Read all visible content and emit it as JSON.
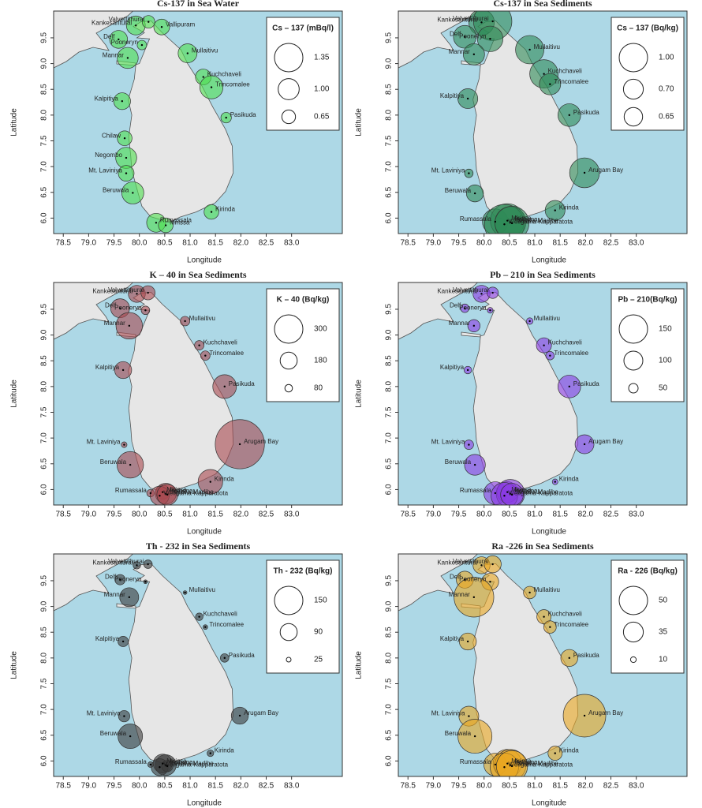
{
  "chart_data": [
    {
      "type": "bubble",
      "title": "Cs-137 in Sea Water",
      "xlabel": "Longitude",
      "ylabel": "Latitude",
      "color": "#4ee04e",
      "labels": [
        "Kankesanturai",
        "Valvettithurai",
        "Vallipuram",
        "Delf",
        "Pooneryn",
        "Mannar",
        "Mullaitivu",
        "Kuchchaveli",
        "Trincomalee",
        "Pasikuda",
        "Kalpitiya",
        "Chilaw",
        "Negombo",
        "Mt. Laviniya",
        "Beruwala",
        "Rumassala",
        "Mirissa",
        "Kirinda"
      ],
      "x": [
        79.93,
        80.18,
        80.44,
        79.59,
        80.05,
        79.77,
        80.95,
        81.26,
        81.42,
        81.71,
        79.66,
        79.71,
        79.74,
        79.74,
        79.87,
        80.33,
        80.52,
        81.42
      ],
      "y": [
        9.74,
        9.81,
        9.71,
        9.47,
        9.36,
        9.11,
        9.2,
        8.74,
        8.54,
        7.95,
        8.27,
        7.55,
        7.17,
        6.87,
        6.49,
        5.91,
        5.86,
        6.12
      ],
      "values": [
        0.9,
        0.6,
        0.75,
        0.85,
        0.45,
        1.0,
        0.9,
        0.75,
        1.1,
        0.5,
        0.8,
        0.7,
        1.0,
        0.75,
        1.05,
        0.9,
        0.7,
        0.7
      ],
      "size_legend": {
        "title": "Cs – 137 (mBq/l)",
        "values": [
          1.35,
          {
            "value": 1,
            "label": "1.00"
          },
          0.65
        ]
      },
      "xlim": [
        78.31,
        84.0
      ],
      "ylim": [
        5.7,
        10.02
      ],
      "xticks": [
        78.5,
        {
          "value": 79,
          "label": "79.0"
        },
        79.5,
        {
          "value": 80,
          "label": "80.0"
        },
        80.5,
        {
          "value": 81,
          "label": "81.0"
        },
        81.5,
        {
          "value": 82,
          "label": "82.0"
        },
        82.5,
        {
          "value": 83,
          "label": "83.0"
        }
      ],
      "yticks": [
        {
          "value": 6,
          "label": "6.0"
        },
        6.5,
        {
          "value": 7,
          "label": "7.0"
        },
        7.5,
        {
          "value": 8,
          "label": "8.0"
        },
        8.5,
        {
          "value": 9,
          "label": "9.0"
        },
        9.5
      ]
    },
    {
      "type": "bubble",
      "title": "Cs-137 in Sea Sediments",
      "xlabel": "Longitude",
      "ylabel": "Latitude",
      "color": "#2e8b57",
      "labels": [
        "Kankesanturai",
        "Valvettithurai",
        "Delf",
        "Pooneryn",
        "Mannar",
        "Mullaitivu",
        "Kuchchaveli",
        "Trincomalee",
        "Kalpitiya",
        "Pasikuda",
        "Mt. Laviniya",
        "Arugam Bay",
        "Beruwala",
        "Rumassala",
        "Mirissa",
        "Polhena",
        "Weligama-Kapparatota",
        "Matara-Madihe",
        "Kirinda"
      ],
      "x": [
        79.95,
        80.17,
        79.62,
        80.12,
        79.8,
        80.9,
        81.18,
        81.3,
        79.68,
        81.68,
        79.7,
        81.98,
        79.82,
        80.22,
        80.46,
        80.52,
        80.4,
        80.55,
        81.4
      ],
      "y": [
        9.8,
        9.82,
        9.52,
        9.48,
        9.18,
        9.27,
        8.8,
        8.6,
        8.32,
        8.0,
        6.87,
        6.88,
        6.48,
        5.93,
        5.95,
        5.92,
        5.88,
        5.9,
        6.15
      ],
      "values": [
        0.9,
        1.35,
        0.8,
        0.9,
        0.75,
        1.0,
        1.0,
        0.75,
        0.7,
        0.8,
        0.3,
        1.05,
        0.6,
        0.9,
        1.2,
        1.1,
        1.4,
        1.2,
        0.7
      ],
      "size_legend": {
        "title": "Cs – 137 (Bq/kg)",
        "values": [
          {
            "value": 1,
            "label": "1.00"
          },
          {
            "value": 0.7,
            "label": "0.70"
          },
          0.65
        ]
      },
      "xlim": [
        78.31,
        84.0
      ],
      "ylim": [
        5.7,
        10.02
      ],
      "xticks": [
        78.5,
        {
          "value": 79,
          "label": "79.0"
        },
        79.5,
        {
          "value": 80,
          "label": "80.0"
        },
        80.5,
        {
          "value": 81,
          "label": "81.0"
        },
        81.5,
        {
          "value": 82,
          "label": "82.0"
        },
        82.5,
        {
          "value": 83,
          "label": "83.0"
        }
      ],
      "yticks": [
        {
          "value": 6,
          "label": "6.0"
        },
        6.5,
        {
          "value": 7,
          "label": "7.0"
        },
        7.5,
        {
          "value": 8,
          "label": "8.0"
        },
        8.5,
        {
          "value": 9,
          "label": "9.0"
        },
        9.5
      ]
    },
    {
      "type": "bubble",
      "title": "K – 40 in Sea Sediments",
      "xlabel": "Longitude",
      "ylabel": "Latitude",
      "color": "#a8474f",
      "labels": [
        "Kankesanturai",
        "Valvettithurai",
        "Delf",
        "Pooneryn",
        "Mannar",
        "Mullaitivu",
        "Kuchchaveli",
        "Trincomalee",
        "Kalpitiya",
        "Pasikuda",
        "Mt. Laviniya",
        "Arugam Bay",
        "Beruwala",
        "Rumassala",
        "Mirissa",
        "Polhena",
        "Weligama-Kapparatota",
        "Matara-Madihe",
        "Kirinda"
      ],
      "x": [
        79.95,
        80.17,
        79.62,
        80.12,
        79.8,
        80.9,
        81.18,
        81.3,
        79.68,
        81.68,
        79.7,
        81.98,
        79.82,
        80.22,
        80.46,
        80.52,
        80.4,
        80.55,
        81.4
      ],
      "y": [
        9.8,
        9.82,
        9.52,
        9.48,
        9.18,
        9.27,
        8.8,
        8.6,
        8.32,
        8.0,
        6.87,
        6.88,
        6.48,
        5.93,
        5.95,
        5.92,
        5.88,
        5.9,
        6.15
      ],
      "values": [
        180,
        150,
        200,
        90,
        280,
        100,
        100,
        100,
        180,
        250,
        60,
        520,
        280,
        80,
        150,
        220,
        200,
        220,
        260
      ],
      "size_legend": {
        "title": "K – 40 (Bq/kg)",
        "values": [
          300,
          180,
          80
        ]
      },
      "xlim": [
        78.31,
        84.0
      ],
      "ylim": [
        5.7,
        10.02
      ],
      "xticks": [
        78.5,
        {
          "value": 79,
          "label": "79.0"
        },
        79.5,
        {
          "value": 80,
          "label": "80.0"
        },
        80.5,
        {
          "value": 81,
          "label": "81.0"
        },
        81.5,
        {
          "value": 82,
          "label": "82.0"
        },
        82.5,
        {
          "value": 83,
          "label": "83.0"
        }
      ],
      "yticks": [
        {
          "value": 6,
          "label": "6.0"
        },
        6.5,
        {
          "value": 7,
          "label": "7.0"
        },
        7.5,
        {
          "value": 8,
          "label": "8.0"
        },
        8.5,
        {
          "value": 9,
          "label": "9.0"
        },
        9.5
      ]
    },
    {
      "type": "bubble",
      "title": "Pb – 210 in Sea Sediments",
      "xlabel": "Longitude",
      "ylabel": "Latitude",
      "color": "#8a3be2",
      "labels": [
        "Kankesanturai",
        "Valvettithurai",
        "Delf",
        "Pooneryn",
        "Mannar",
        "Mullaitivu",
        "Kuchchaveli",
        "Trincomalee",
        "Kalpitiya",
        "Pasikuda",
        "Mt. Laviniya",
        "Arugam Bay",
        "Beruwala",
        "Rumassala",
        "Mirissa",
        "Polhena",
        "Weligama-Kapparatota",
        "Matara-Madihe",
        "Kirinda"
      ],
      "x": [
        79.95,
        80.17,
        79.62,
        80.12,
        79.8,
        80.9,
        81.18,
        81.3,
        79.68,
        81.68,
        79.7,
        81.98,
        79.82,
        80.22,
        80.46,
        80.52,
        80.4,
        80.55,
        81.4
      ],
      "y": [
        9.8,
        9.82,
        9.52,
        9.48,
        9.18,
        9.27,
        8.8,
        8.6,
        8.32,
        8.0,
        6.87,
        6.88,
        6.48,
        5.93,
        5.95,
        5.92,
        5.88,
        5.9,
        6.15
      ],
      "values": [
        90,
        60,
        45,
        30,
        65,
        35,
        80,
        45,
        40,
        120,
        50,
        100,
        110,
        120,
        110,
        150,
        140,
        120,
        30
      ],
      "size_legend": {
        "title": "Pb – 210(Bq/kg)",
        "values": [
          150,
          100,
          50
        ]
      },
      "xlim": [
        78.31,
        84.0
      ],
      "ylim": [
        5.7,
        10.02
      ],
      "xticks": [
        78.5,
        {
          "value": 79,
          "label": "79.0"
        },
        79.5,
        {
          "value": 80,
          "label": "80.0"
        },
        80.5,
        {
          "value": 81,
          "label": "81.0"
        },
        81.5,
        {
          "value": 82,
          "label": "82.0"
        },
        82.5,
        {
          "value": 83,
          "label": "83.0"
        }
      ],
      "yticks": [
        {
          "value": 6,
          "label": "6.0"
        },
        6.5,
        {
          "value": 7,
          "label": "7.0"
        },
        7.5,
        {
          "value": 8,
          "label": "8.0"
        },
        8.5,
        {
          "value": 9,
          "label": "9.0"
        },
        9.5
      ]
    },
    {
      "type": "bubble",
      "title": "Th - 232 in Sea Sediments",
      "xlabel": "Longitude",
      "ylabel": "Latitude",
      "color": "#3a3a3a",
      "labels": [
        "Kankesanturai",
        "Valvettithurai",
        "Delf",
        "Pooneryn",
        "Mannar",
        "Mullaitivu",
        "Kuchchaveli",
        "Trincomalee",
        "Kalpitiya",
        "Pasikuda",
        "Mt. Laviniya",
        "Arugam Bay",
        "Beruwala",
        "Rumassala",
        "Mirissa",
        "Polhena",
        "Weligama-Kapparatota",
        "Matara-Madihe",
        "Kirinda"
      ],
      "x": [
        79.95,
        80.17,
        79.62,
        80.12,
        79.8,
        80.9,
        81.18,
        81.3,
        79.68,
        81.68,
        79.7,
        81.98,
        79.82,
        80.22,
        80.46,
        80.52,
        80.4,
        80.55,
        81.4
      ],
      "y": [
        9.8,
        9.82,
        9.52,
        9.48,
        9.18,
        9.27,
        8.8,
        8.6,
        8.32,
        8.0,
        6.87,
        6.88,
        6.48,
        5.93,
        5.95,
        5.92,
        5.88,
        5.9,
        6.15
      ],
      "values": [
        40,
        45,
        55,
        20,
        100,
        20,
        40,
        25,
        55,
        45,
        60,
        90,
        130,
        30,
        100,
        110,
        90,
        60,
        35
      ],
      "size_legend": {
        "title": "Th - 232 (Bq/kg)",
        "values": [
          150,
          90,
          25
        ]
      },
      "xlim": [
        78.31,
        84.0
      ],
      "ylim": [
        5.7,
        10.02
      ],
      "xticks": [
        78.5,
        {
          "value": 79,
          "label": "79.0"
        },
        79.5,
        {
          "value": 80,
          "label": "80.0"
        },
        80.5,
        {
          "value": 81,
          "label": "81.0"
        },
        81.5,
        {
          "value": 82,
          "label": "82.0"
        },
        82.5,
        {
          "value": 83,
          "label": "83.0"
        }
      ],
      "yticks": [
        {
          "value": 6,
          "label": "6.0"
        },
        6.5,
        {
          "value": 7,
          "label": "7.0"
        },
        7.5,
        {
          "value": 8,
          "label": "8.0"
        },
        8.5,
        {
          "value": 9,
          "label": "9.0"
        },
        9.5
      ]
    },
    {
      "type": "bubble",
      "title": "Ra -226 in Sea Sediments",
      "xlabel": "Longitude",
      "ylabel": "Latitude",
      "color": "#eaa620",
      "labels": [
        "Kankesanturai",
        "Valvettithurai",
        "Delf",
        "Pooneryn",
        "Mannar",
        "Mullaitivu",
        "Kuchchaveli",
        "Trincomalee",
        "Kalpitiya",
        "Pasikuda",
        "Mt. Laviniya",
        "Arugam Bay",
        "Beruwala",
        "Rumassala",
        "Mirissa",
        "Polhena",
        "Weligama-Kapparatota",
        "Matara-Madihe",
        "Kirinda"
      ],
      "x": [
        79.95,
        80.17,
        79.62,
        80.12,
        79.8,
        80.9,
        81.18,
        81.3,
        79.68,
        81.68,
        79.7,
        81.98,
        79.82,
        80.22,
        80.46,
        80.52,
        80.4,
        80.55,
        81.4
      ],
      "y": [
        9.8,
        9.82,
        9.52,
        9.48,
        9.18,
        9.27,
        8.8,
        8.6,
        8.32,
        8.0,
        6.87,
        6.88,
        6.48,
        5.93,
        5.95,
        5.92,
        5.88,
        5.9,
        6.15
      ],
      "values": [
        30,
        30,
        30,
        30,
        70,
        22,
        25,
        22,
        30,
        30,
        35,
        75,
        60,
        40,
        50,
        55,
        50,
        55,
        25
      ],
      "size_legend": {
        "title": "Ra - 226 (Bq/kg)",
        "values": [
          50,
          35,
          10
        ]
      },
      "xlim": [
        78.31,
        84.0
      ],
      "ylim": [
        5.7,
        10.02
      ],
      "xticks": [
        78.5,
        {
          "value": 79,
          "label": "79.0"
        },
        79.5,
        {
          "value": 80,
          "label": "80.0"
        },
        80.5,
        {
          "value": 81,
          "label": "81.0"
        },
        81.5,
        {
          "value": 82,
          "label": "82.0"
        },
        82.5,
        {
          "value": 83,
          "label": "83.0"
        }
      ],
      "yticks": [
        {
          "value": 6,
          "label": "6.0"
        },
        6.5,
        {
          "value": 7,
          "label": "7.0"
        },
        7.5,
        {
          "value": 8,
          "label": "8.0"
        },
        8.5,
        {
          "value": 9,
          "label": "9.0"
        },
        9.5
      ]
    }
  ]
}
